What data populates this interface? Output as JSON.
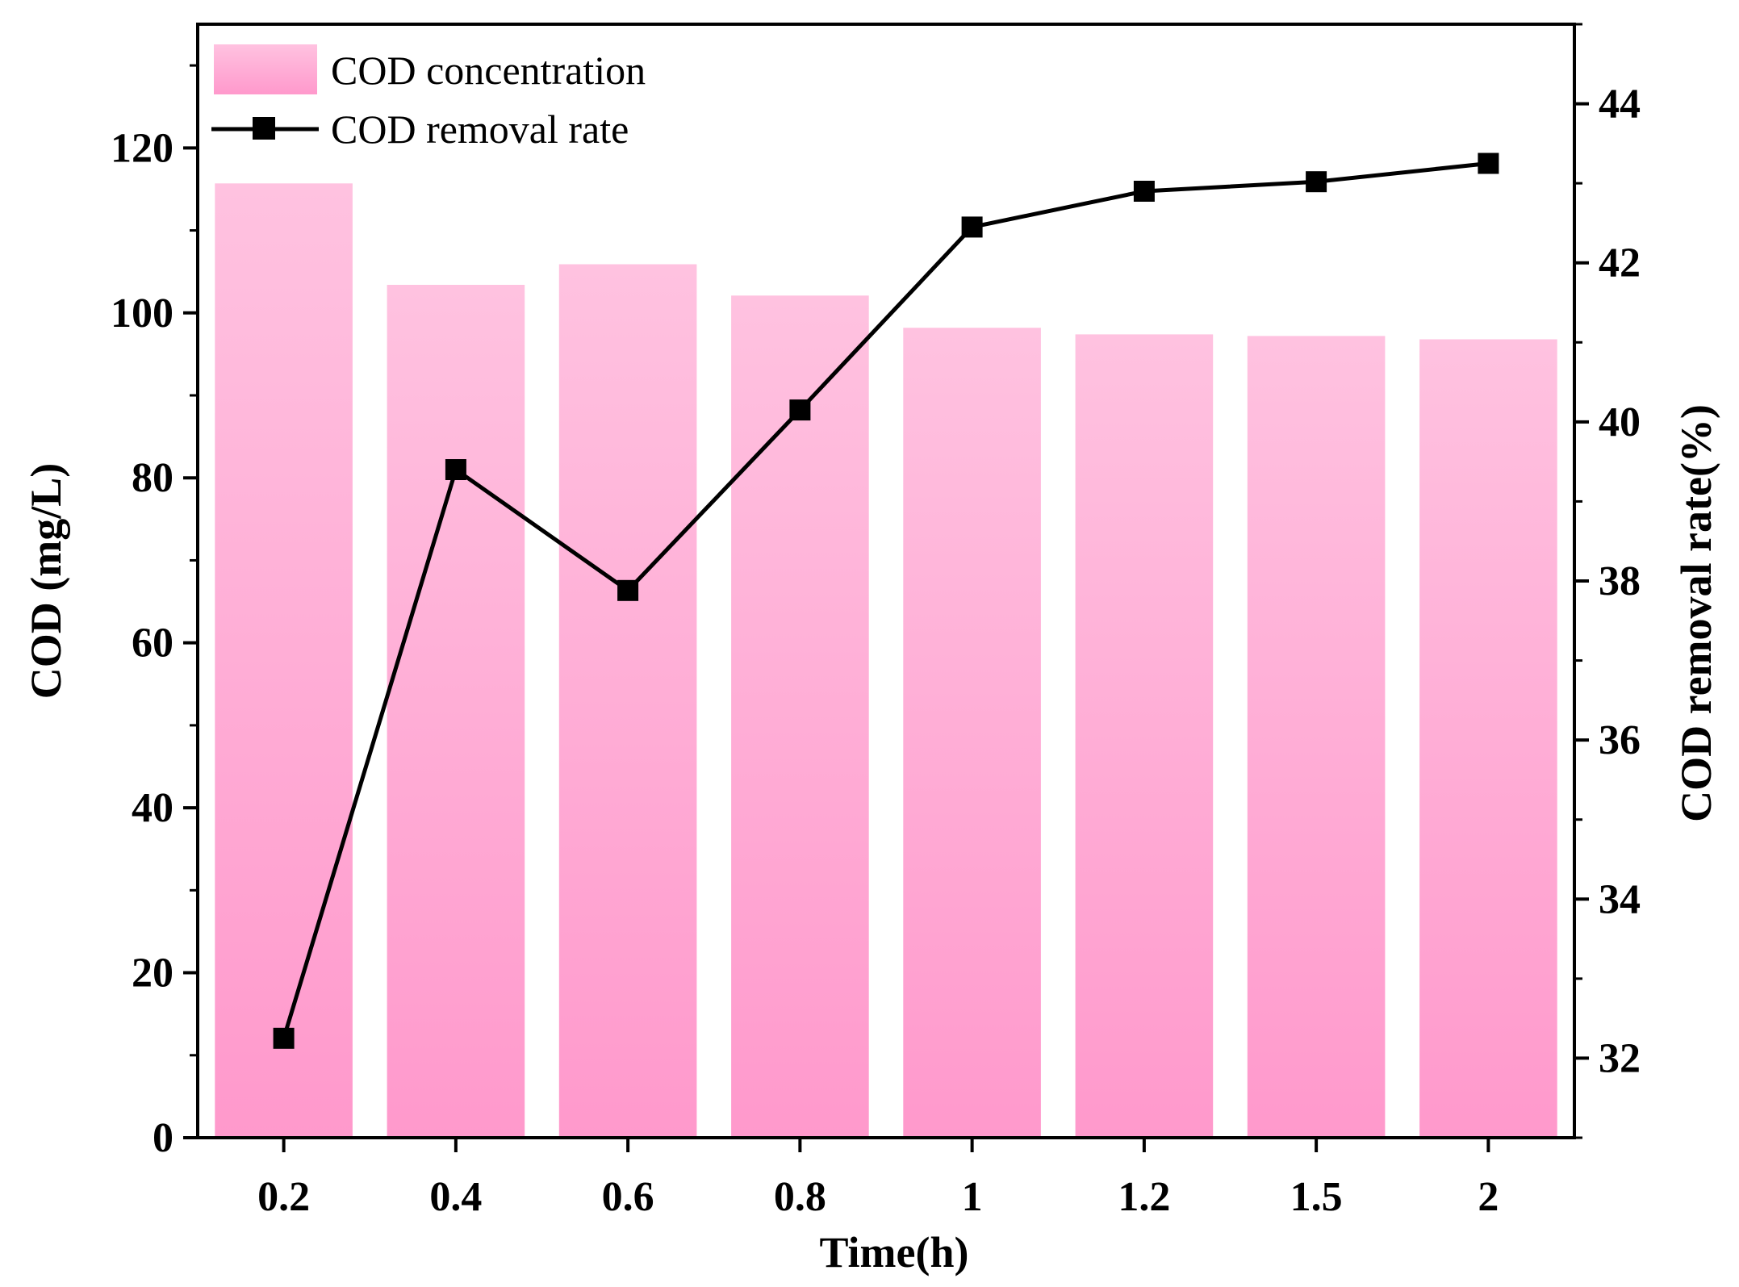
{
  "chart_data": {
    "type": "bar",
    "title": "",
    "xlabel": "Time(h)",
    "ylabel": "COD (mg/L)",
    "y2label": "COD removal rate(%)",
    "categories": [
      "0.2",
      "0.4",
      "0.6",
      "0.8",
      "1",
      "1.2",
      "1.5",
      "2"
    ],
    "ylim": [
      0,
      135
    ],
    "yticks": [
      0,
      20,
      40,
      60,
      80,
      100,
      120
    ],
    "y2lim": [
      31,
      45
    ],
    "y2ticks": [
      32,
      34,
      36,
      38,
      40,
      42,
      44
    ],
    "legend_position": "top-left",
    "grid": false,
    "series": [
      {
        "name": "COD concentration",
        "type": "bar",
        "axis": "left",
        "values": [
          115.7,
          103.4,
          105.9,
          102.1,
          98.2,
          97.4,
          97.2,
          96.8
        ]
      },
      {
        "name": "COD removal rate",
        "type": "line",
        "marker": "square",
        "axis": "right",
        "values": [
          32.25,
          39.4,
          37.88,
          40.15,
          42.45,
          42.9,
          43.02,
          43.25
        ]
      }
    ],
    "colors": {
      "bar_top": "#ffc2e0",
      "bar_bottom": "#ff99cc",
      "line": "#000000"
    }
  }
}
